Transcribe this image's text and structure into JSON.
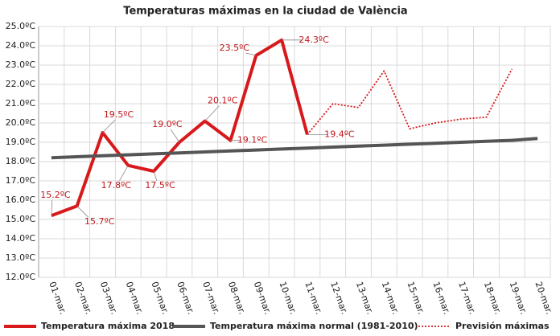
{
  "chart_data": {
    "type": "line",
    "title": "Temperaturas máximas en la ciudad de València",
    "categories": [
      "01-mar.",
      "02-mar.",
      "03-mar.",
      "04-mar.",
      "05-mar.",
      "06-mar.",
      "07-mar.",
      "08-mar.",
      "09-mar.",
      "10-mar.",
      "11-mar.",
      "12-mar.",
      "13-mar.",
      "14-mar.",
      "15-mar.",
      "16-mar.",
      "17-mar.",
      "18-mar.",
      "19-mar.",
      "20-mar."
    ],
    "series": [
      {
        "name": "Temperatura máxima 2018",
        "color": "#d7191c",
        "style": "solid",
        "values": [
          15.2,
          15.7,
          19.5,
          17.8,
          17.5,
          19.0,
          20.1,
          19.1,
          23.5,
          24.3,
          19.4,
          null,
          null,
          null,
          null,
          null,
          null,
          null,
          null,
          null
        ],
        "value_labels": [
          "15.2ºC",
          "15.7ºC",
          "19.5ºC",
          "17.8ºC",
          "17.5ºC",
          "19.0ºC",
          "20.1ºC",
          "19.1ºC",
          "23.5ºC",
          "24.3ºC",
          "19.4ºC",
          null,
          null,
          null,
          null,
          null,
          null,
          null,
          null,
          null
        ]
      },
      {
        "name": "Temperatura máxima normal (1981-2010)",
        "color": "#555555",
        "style": "solid",
        "values": [
          18.2,
          18.25,
          18.3,
          18.35,
          18.4,
          18.45,
          18.5,
          18.55,
          18.6,
          18.65,
          18.7,
          18.75,
          18.8,
          18.85,
          18.9,
          18.95,
          19.0,
          19.05,
          19.1,
          19.2
        ]
      },
      {
        "name": "Previsión máximas",
        "color": "#d7191c",
        "style": "dotted",
        "values": [
          null,
          null,
          null,
          null,
          null,
          null,
          null,
          null,
          null,
          null,
          19.4,
          21.0,
          20.8,
          22.7,
          19.7,
          20.0,
          20.2,
          20.3,
          22.8,
          null
        ]
      }
    ],
    "ylim": [
      12,
      25
    ],
    "yticks": [
      {
        "value": 12,
        "label": "12.0ºC"
      },
      {
        "value": 13,
        "label": "13.0ºC"
      },
      {
        "value": 14,
        "label": "14.0ºC"
      },
      {
        "value": 15,
        "label": "15.0ºC"
      },
      {
        "value": 16,
        "label": "16.0ºC"
      },
      {
        "value": 17,
        "label": "17.0ºC"
      },
      {
        "value": 18,
        "label": "18.0ºC"
      },
      {
        "value": 19,
        "label": "19.0ºC"
      },
      {
        "value": 20,
        "label": "20.0ºC"
      },
      {
        "value": 21,
        "label": "21.0ºC"
      },
      {
        "value": 22,
        "label": "22.0ºC"
      },
      {
        "value": 23,
        "label": "23.0ºC"
      },
      {
        "value": 24,
        "label": "24.0ºC"
      },
      {
        "value": 25,
        "label": "25.0ºC"
      }
    ],
    "grid": true,
    "legend": "bottom"
  }
}
